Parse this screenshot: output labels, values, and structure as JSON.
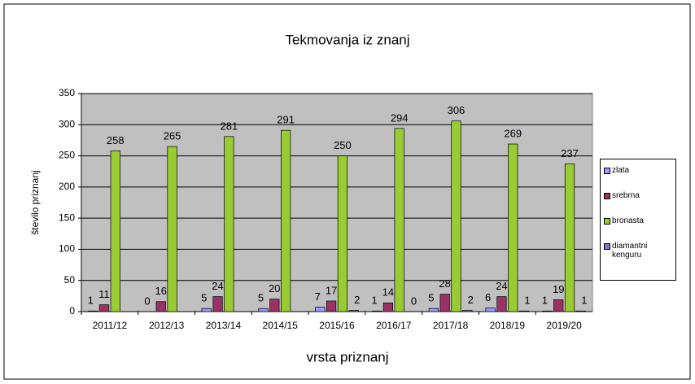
{
  "chart_data": {
    "type": "bar",
    "title": "Tekmovanja iz znanj",
    "x_label": "vrsta priznanj",
    "y_label": "število priznanj",
    "categories": [
      "2011/12",
      "2012/13",
      "2013/14",
      "2014/15",
      "2015/16",
      "2016/17",
      "2017/18",
      "2018/19",
      "2019/20"
    ],
    "series": [
      {
        "name": "zlata",
        "color": "#9999ff",
        "values": [
          1,
          0,
          5,
          5,
          7,
          1,
          5,
          6,
          1
        ]
      },
      {
        "name": "srebrna",
        "color": "#993366",
        "values": [
          11,
          16,
          24,
          20,
          17,
          14,
          28,
          24,
          19
        ]
      },
      {
        "name": "bronasta",
        "color": "#99cc33",
        "values": [
          258,
          265,
          281,
          291,
          250,
          294,
          306,
          269,
          237
        ]
      },
      {
        "name": "diamantni kenguru",
        "color": "#8e6fc6",
        "values": [
          null,
          null,
          null,
          null,
          2,
          0,
          2,
          1,
          1
        ]
      }
    ],
    "ylim": [
      0,
      350
    ],
    "yticks": [
      0,
      50,
      100,
      150,
      200,
      250,
      300,
      350
    ],
    "grid": true,
    "legend": "right"
  }
}
